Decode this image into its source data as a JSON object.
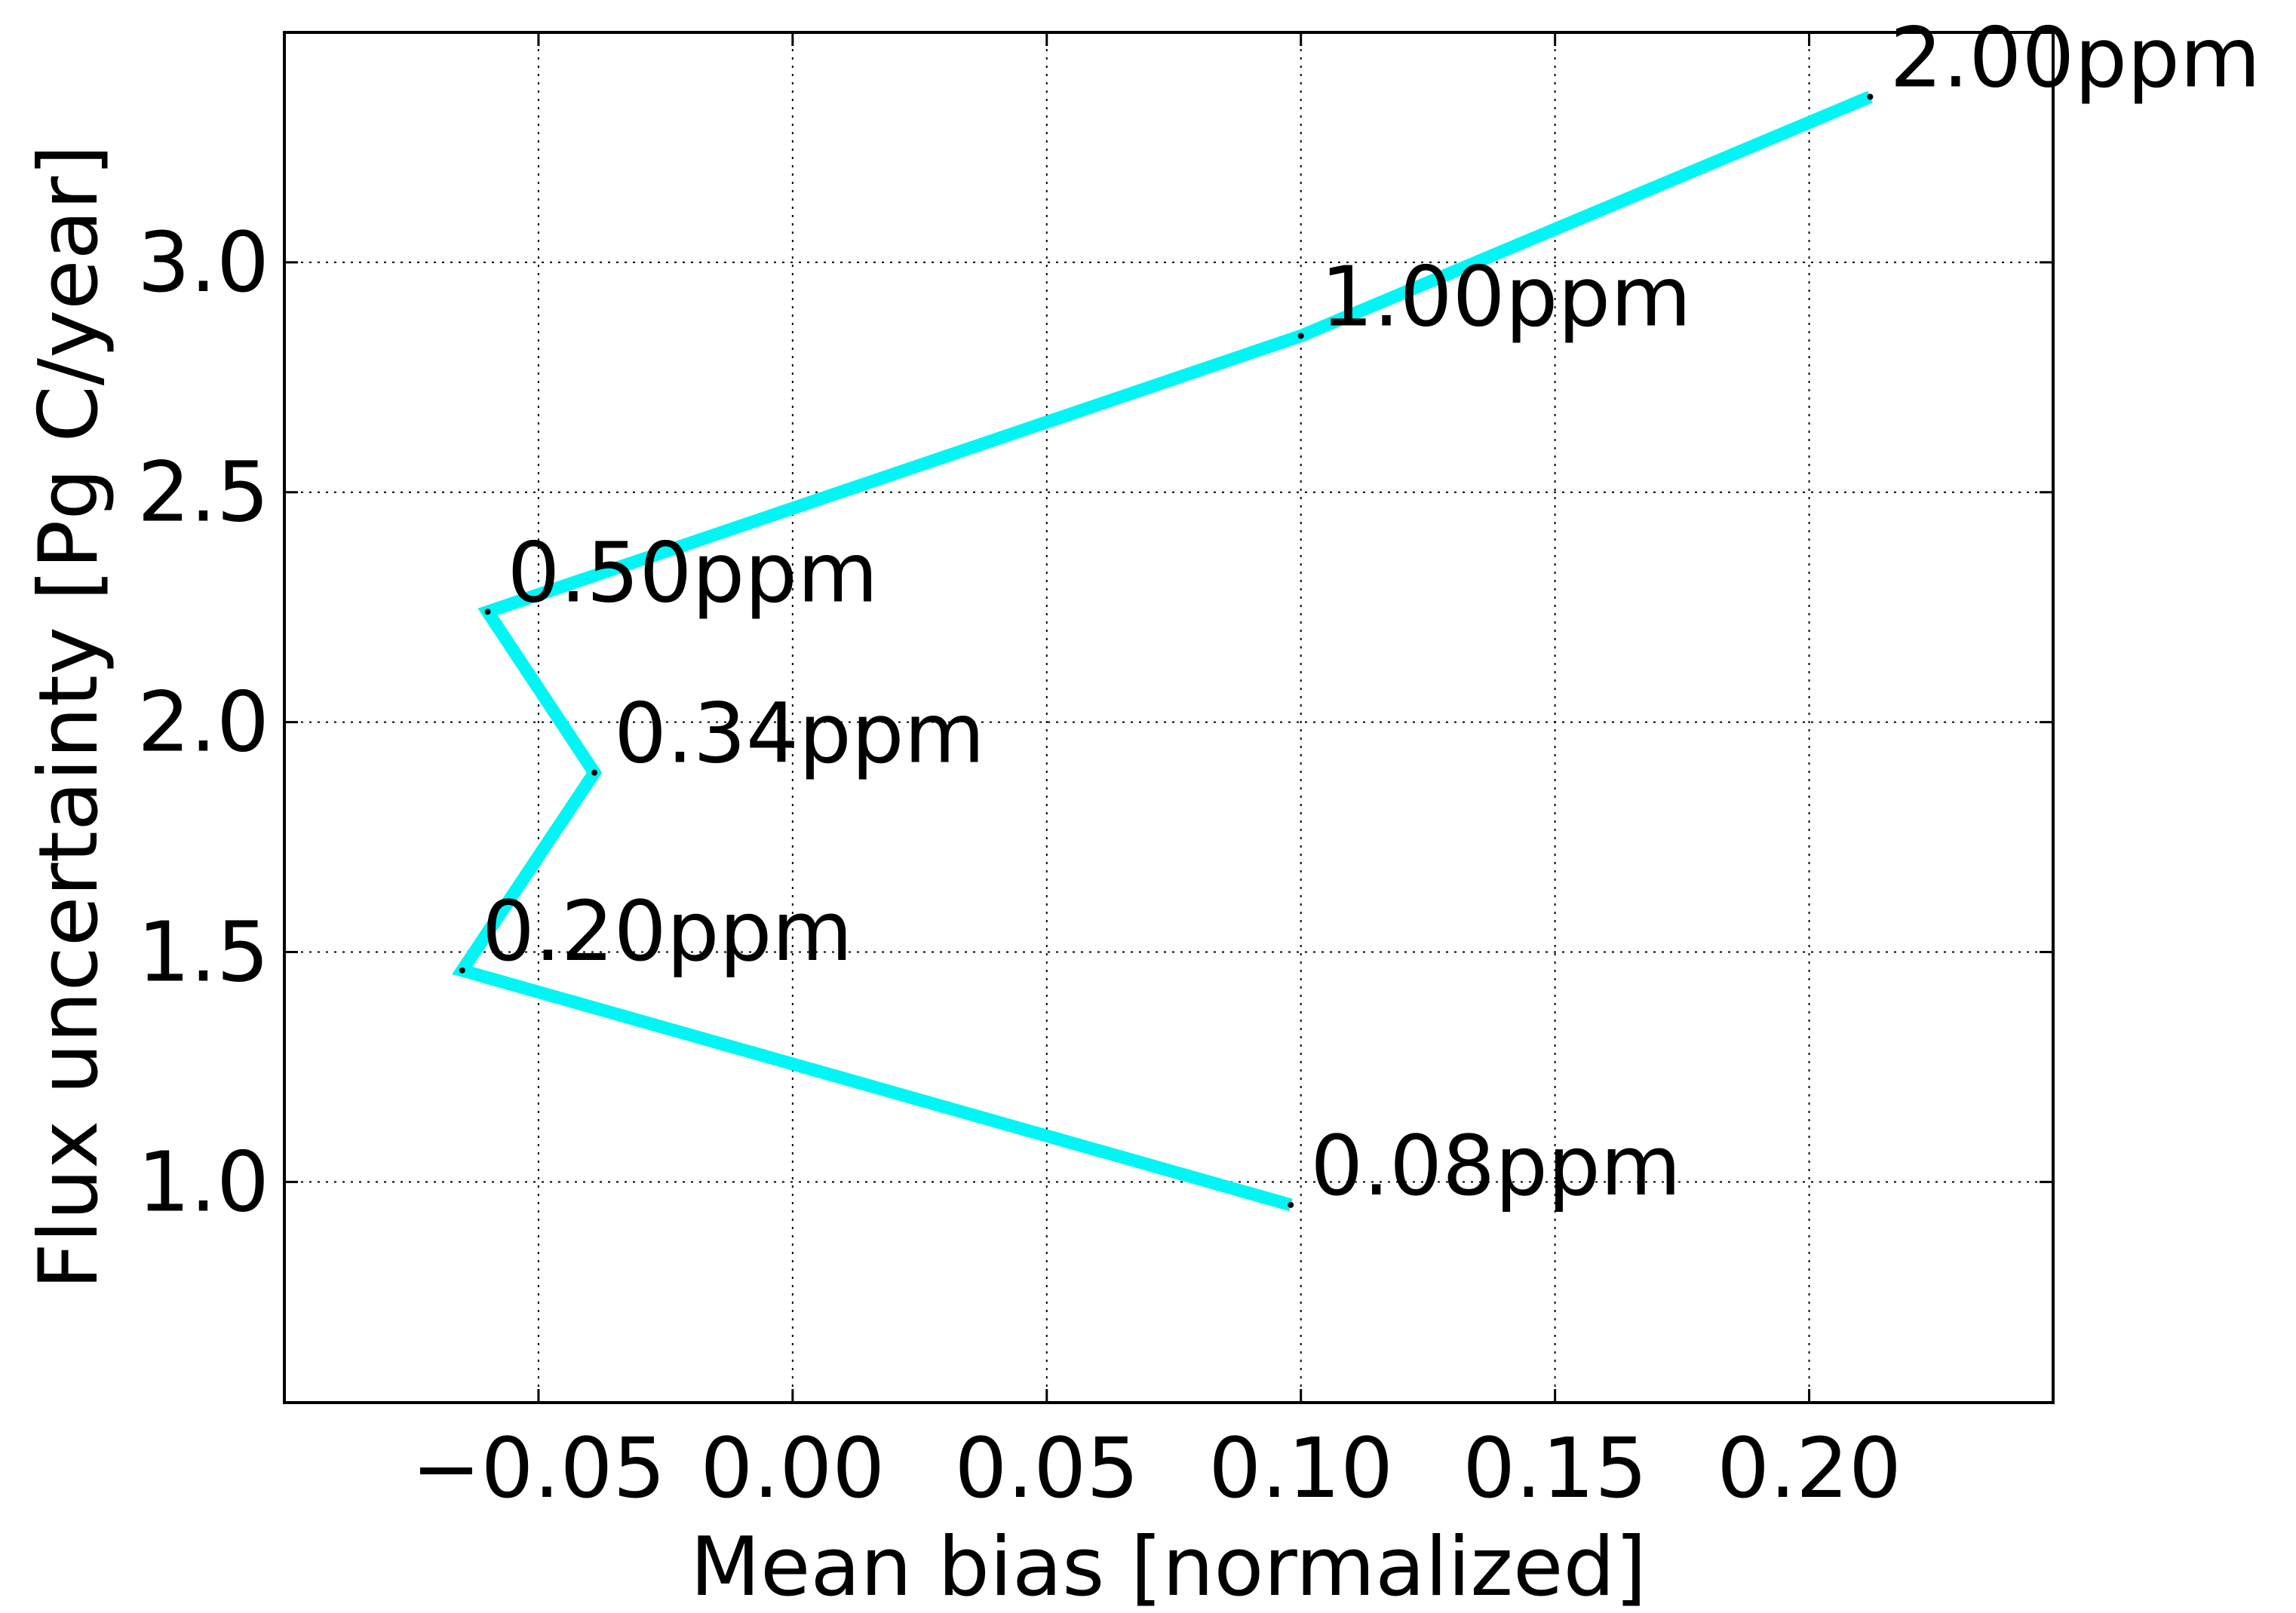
{
  "chart_data": {
    "type": "line",
    "xlabel": "Mean bias [normalized]",
    "ylabel": "Flux uncertainty [Pg C/year]",
    "xlim": [
      -0.1,
      0.248
    ],
    "ylim": [
      0.52,
      3.5
    ],
    "xticks": [
      -0.05,
      0.0,
      0.05,
      0.1,
      0.15,
      0.2
    ],
    "xtick_labels": [
      "−0.05",
      "0.00",
      "0.05",
      "0.10",
      "0.15",
      "0.20"
    ],
    "yticks": [
      1.0,
      1.5,
      2.0,
      2.5,
      3.0
    ],
    "ytick_labels": [
      "1.0",
      "1.5",
      "2.0",
      "2.5",
      "3.0"
    ],
    "grid": true,
    "line_color": "#00f5f5",
    "series": [
      {
        "x": [
          0.098,
          -0.065,
          -0.039,
          -0.06,
          0.1,
          0.212
        ],
        "y": [
          0.95,
          1.46,
          1.89,
          2.24,
          2.84,
          3.36
        ],
        "point_labels": [
          "0.08ppm",
          "0.20ppm",
          "0.34ppm",
          "0.50ppm",
          "1.00ppm",
          "2.00ppm"
        ]
      }
    ]
  }
}
